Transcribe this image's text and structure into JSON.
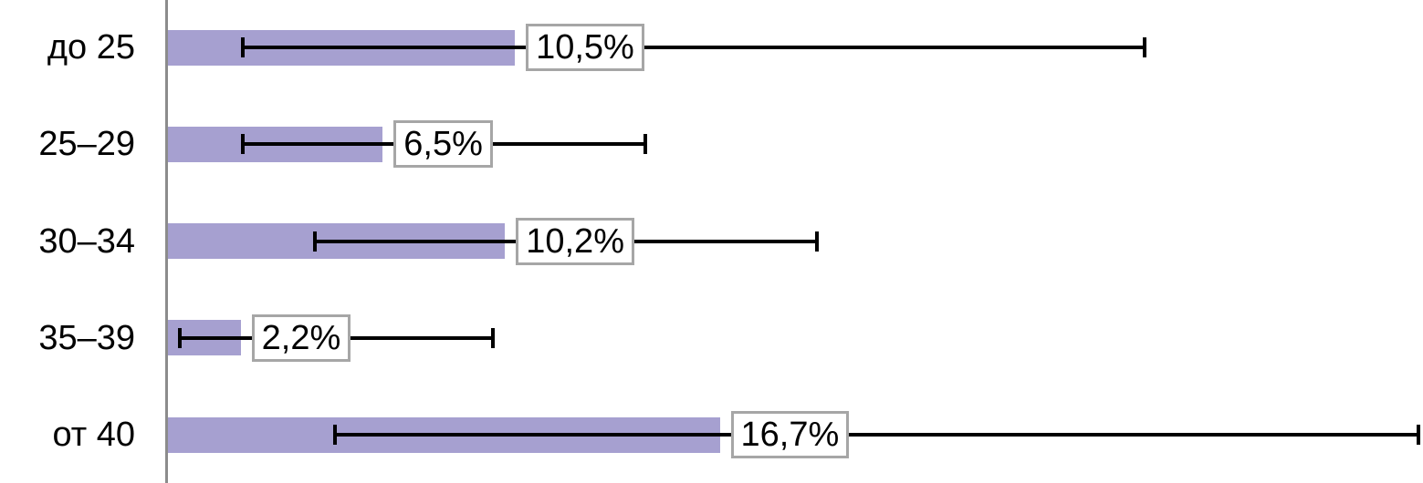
{
  "chart_data": {
    "type": "bar",
    "orientation": "horizontal",
    "title": "",
    "xlabel": "",
    "ylabel": "",
    "categories": [
      "до 25",
      "25–29",
      "30–34",
      "35–39",
      "от 40"
    ],
    "values": [
      10.5,
      6.5,
      10.2,
      2.2,
      16.7
    ],
    "value_labels": [
      "10,5%",
      "6,5%",
      "10,2%",
      "2,2%",
      "16,7%"
    ],
    "error_low": [
      2.2,
      2.2,
      4.4,
      0.3,
      5.0
    ],
    "error_high": [
      29.6,
      14.5,
      19.7,
      9.9,
      37.9
    ],
    "xlim": [
      0,
      38
    ],
    "grid": false,
    "legend": false,
    "bar_color": "#a6a0d0",
    "error_bar_color": "#000000",
    "axis_color": "#8c8c8c",
    "label_box_border_color": "#a6a6a6",
    "label_box_fill": "#ffffff",
    "background": "#ffffff"
  }
}
